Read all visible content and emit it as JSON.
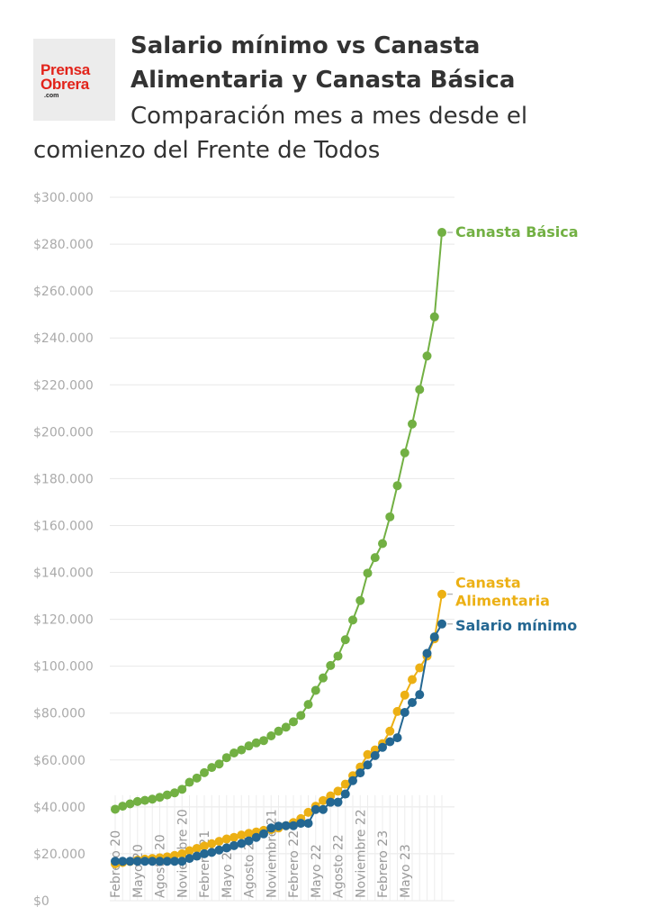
{
  "logo": {
    "line1": "Prensa",
    "line2": "Obrera",
    "line3": ".com"
  },
  "header": {
    "title": "Salario mínimo vs Canasta Alimentaria y Canasta Básica",
    "subtitle": "Comparación mes a mes desde el comienzo del Frente de Todos"
  },
  "colors": {
    "canasta_basica": "#72b043",
    "canasta_alimentaria": "#ecb014",
    "salario_minimo": "#246792",
    "grid": "#e8e8e8",
    "tick": "#aaaaaa"
  },
  "chart_data": {
    "type": "line",
    "title": "Salario mínimo vs Canasta Alimentaria y Canasta Básica",
    "subtitle": "Comparación mes a mes desde el comienzo del Frente de Todos",
    "ylim": [
      0,
      300000
    ],
    "y_ticks": [
      "$0",
      "$20.000",
      "$40.000",
      "$60.000",
      "$80.000",
      "$100.000",
      "$120.000",
      "$140.000",
      "$160.000",
      "$180.000",
      "$200.000",
      "$220.000",
      "$240.000",
      "$260.000",
      "$280.000",
      "$300.000"
    ],
    "x_tick_labels": [
      "Febrero 20",
      "Mayo 20",
      "Agosto 20",
      "Noviembre 20",
      "Febrero 21",
      "Mayo 21",
      "Agosto 21",
      "Noviembre 21",
      "Febrero 22",
      "Mayo 22",
      "Agosto 22",
      "Noviembre 22",
      "Febrero 23",
      "Mayo 23"
    ],
    "grid": true,
    "series": [
      {
        "name": "Canasta Básica",
        "color": "#72b043",
        "values": [
          39000,
          40300,
          41300,
          42300,
          42800,
          43300,
          44100,
          45100,
          46000,
          47500,
          50500,
          52300,
          54600,
          56800,
          58300,
          61000,
          63000,
          64300,
          66000,
          67300,
          68300,
          70300,
          72300,
          74000,
          76300,
          79000,
          83700,
          89700,
          95000,
          100300,
          104300,
          111300,
          119700,
          128000,
          139700,
          146300,
          152300,
          163700,
          177000,
          191000,
          203300,
          218000,
          232300,
          249000,
          285000
        ]
      },
      {
        "name": "Canasta Alimentaria",
        "color": "#ecb014",
        "values": [
          15700,
          16300,
          16700,
          17300,
          17700,
          18000,
          18300,
          18700,
          19300,
          20000,
          21300,
          22300,
          23300,
          24300,
          25300,
          26300,
          27000,
          28000,
          28700,
          29300,
          30000,
          30300,
          31000,
          32000,
          33300,
          35000,
          37700,
          40300,
          42700,
          44700,
          46700,
          49700,
          53300,
          57000,
          62300,
          64300,
          67000,
          72300,
          80700,
          87700,
          94300,
          99300,
          104300,
          111700,
          130700
        ]
      },
      {
        "name": "Salario mínimo",
        "color": "#246792",
        "values": [
          16800,
          16800,
          16800,
          16800,
          16800,
          16800,
          16800,
          16800,
          16800,
          16800,
          18000,
          19000,
          20000,
          20600,
          21600,
          22500,
          23500,
          24400,
          25500,
          27000,
          28500,
          31000,
          31800,
          32000,
          32000,
          33000,
          33000,
          38900,
          38900,
          42000,
          42000,
          45500,
          51200,
          54500,
          57900,
          61900,
          65400,
          67800,
          69500,
          80300,
          84500,
          87900,
          105500,
          112500,
          118000
        ]
      }
    ],
    "series_labels": [
      {
        "name": "Canasta Básica",
        "lines": [
          "Canasta Básica"
        ]
      },
      {
        "name": "Canasta Alimentaria",
        "lines": [
          "Canasta",
          "Alimentaria"
        ]
      },
      {
        "name": "Salario mínimo",
        "lines": [
          "Salario mínimo"
        ]
      }
    ]
  }
}
